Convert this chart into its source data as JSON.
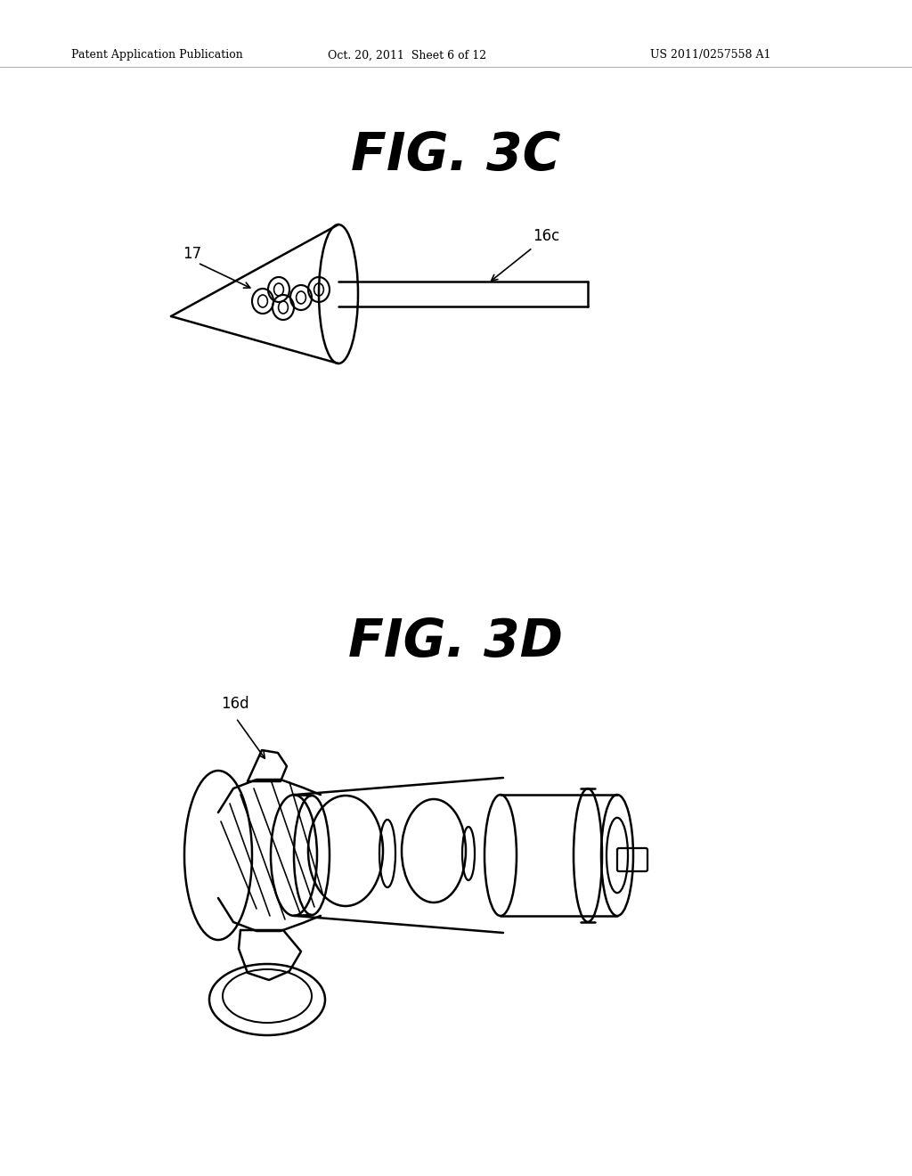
{
  "background_color": "#ffffff",
  "header_left": "Patent Application Publication",
  "header_mid": "Oct. 20, 2011  Sheet 6 of 12",
  "header_right": "US 2011/0257558 A1",
  "line_color": "#000000",
  "line_width": 1.8
}
